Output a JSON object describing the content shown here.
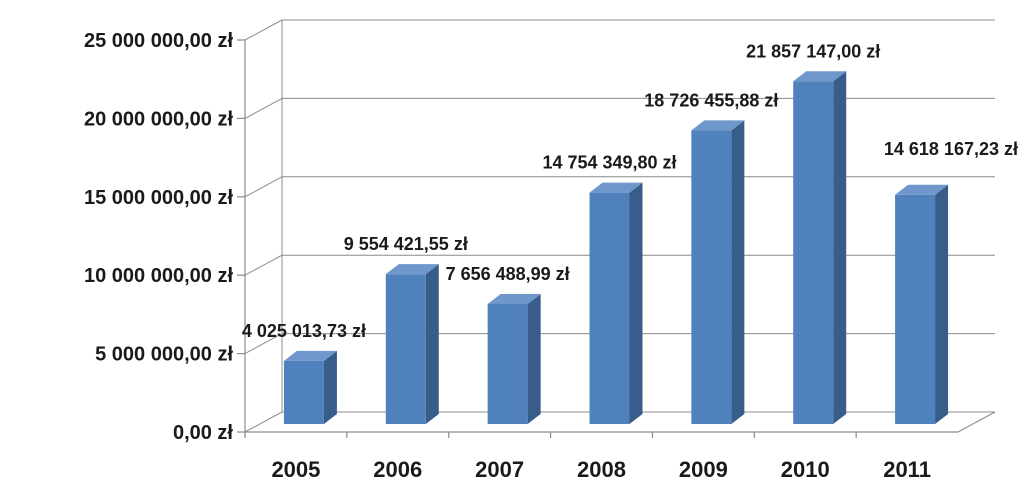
{
  "chart_data": {
    "type": "bar",
    "title": "",
    "xlabel": "",
    "ylabel": "",
    "categories": [
      "2005",
      "2006",
      "2007",
      "2008",
      "2009",
      "2010",
      "2011"
    ],
    "values": [
      4025013.73,
      9554421.55,
      7656488.99,
      14754349.8,
      18726455.88,
      21857147.0,
      14618167.23
    ],
    "data_labels": [
      "4 025 013,73 zł",
      "9 554 421,55 zł",
      "7 656 488,99 zł",
      "14 754 349,80 zł",
      "18 726 455,88 zł",
      "21 857 147,00 zł",
      "14 618 167,23 zł"
    ],
    "ylim": [
      0,
      25000000
    ],
    "y_ticks": [
      0,
      5000000,
      10000000,
      15000000,
      20000000,
      25000000
    ],
    "y_tick_labels": [
      "0,00 zł",
      "5 000 000,00 zł",
      "10 000 000,00 zł",
      "15 000 000,00 zł",
      "20 000 000,00 zł",
      "25 000 000,00 zł"
    ],
    "grid": true,
    "legend": "none",
    "three_d": true,
    "colors": {
      "bar_front": "#4f81bd",
      "bar_side": "#385d8a",
      "bar_top": "#6f97cb",
      "grid": "#8c8c8c",
      "axis": "#8c8c8c",
      "text": "#1a1a1a"
    }
  }
}
